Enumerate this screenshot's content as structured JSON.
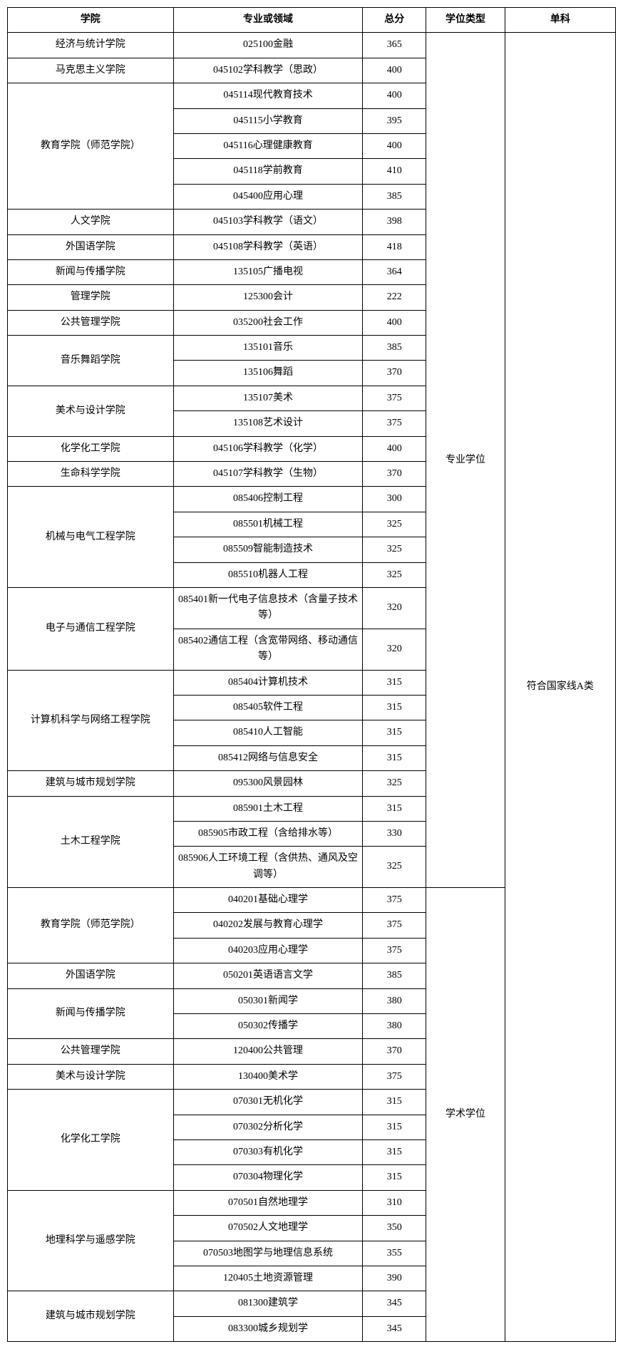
{
  "headers": {
    "college": "学院",
    "major": "专业或领域",
    "score": "总分",
    "type": "学位类型",
    "single": "单科"
  },
  "type_labels": {
    "pro": "专业学位",
    "acad": "学术学位"
  },
  "single_label": "符合国家线A类",
  "rows": [
    {
      "college": "经济与统计学院",
      "college_rowspan": 1,
      "major": "025100金融",
      "score": "365"
    },
    {
      "college": "马克思主义学院",
      "college_rowspan": 1,
      "major": "045102学科教学（思政）",
      "score": "400"
    },
    {
      "college": "教育学院（师范学院）",
      "college_rowspan": 5,
      "major": "045114现代教育技术",
      "score": "400"
    },
    {
      "major": "045115小学教育",
      "score": "395"
    },
    {
      "major": "045116心理健康教育",
      "score": "400"
    },
    {
      "major": "045118学前教育",
      "score": "410"
    },
    {
      "major": "045400应用心理",
      "score": "385"
    },
    {
      "college": "人文学院",
      "college_rowspan": 1,
      "major": "045103学科教学（语文）",
      "score": "398"
    },
    {
      "college": "外国语学院",
      "college_rowspan": 1,
      "major": "045108学科教学（英语）",
      "score": "418"
    },
    {
      "college": "新闻与传播学院",
      "college_rowspan": 1,
      "major": "135105广播电视",
      "score": "364"
    },
    {
      "college": "管理学院",
      "college_rowspan": 1,
      "major": "125300会计",
      "score": "222"
    },
    {
      "college": "公共管理学院",
      "college_rowspan": 1,
      "major": "035200社会工作",
      "score": "400"
    },
    {
      "college": "音乐舞蹈学院",
      "college_rowspan": 2,
      "major": "135101音乐",
      "score": "385"
    },
    {
      "major": "135106舞蹈",
      "score": "370"
    },
    {
      "college": "美术与设计学院",
      "college_rowspan": 2,
      "major": "135107美术",
      "score": "375"
    },
    {
      "major": "135108艺术设计",
      "score": "375"
    },
    {
      "college": "化学化工学院",
      "college_rowspan": 1,
      "major": "045106学科教学（化学）",
      "score": "400"
    },
    {
      "college": "生命科学学院",
      "college_rowspan": 1,
      "major": "045107学科教学（生物）",
      "score": "370"
    },
    {
      "college": "机械与电气工程学院",
      "college_rowspan": 4,
      "major": "085406控制工程",
      "score": "300"
    },
    {
      "major": "085501机械工程",
      "score": "325"
    },
    {
      "major": "085509智能制造技术",
      "score": "325"
    },
    {
      "major": "085510机器人工程",
      "score": "325"
    },
    {
      "college": "电子与通信工程学院",
      "college_rowspan": 2,
      "major": "085401新一代电子信息技术（含量子技术等）",
      "score": "320"
    },
    {
      "major": "085402通信工程（含宽带网络、移动通信等）",
      "score": "320"
    },
    {
      "college": "计算机科学与网络工程学院",
      "college_rowspan": 4,
      "major": "085404计算机技术",
      "score": "315"
    },
    {
      "major": "085405软件工程",
      "score": "315"
    },
    {
      "major": "085410人工智能",
      "score": "315"
    },
    {
      "major": "085412网络与信息安全",
      "score": "315"
    },
    {
      "college": "建筑与城市规划学院",
      "college_rowspan": 1,
      "major": "095300风景园林",
      "score": "325"
    },
    {
      "college": "土木工程学院",
      "college_rowspan": 3,
      "major": "085901土木工程",
      "score": "315"
    },
    {
      "major": "085905市政工程（含给排水等）",
      "score": "330"
    },
    {
      "major": "085906人工环境工程（含供热、通风及空调等）",
      "score": "325"
    },
    {
      "college": "教育学院（师范学院）",
      "college_rowspan": 3,
      "major": "040201基础心理学",
      "score": "375"
    },
    {
      "major": "040202发展与教育心理学",
      "score": "375"
    },
    {
      "major": "040203应用心理学",
      "score": "375"
    },
    {
      "college": "外国语学院",
      "college_rowspan": 1,
      "major": "050201英语语言文学",
      "score": "385"
    },
    {
      "college": "新闻与传播学院",
      "college_rowspan": 2,
      "major": "050301新闻学",
      "score": "380"
    },
    {
      "major": "050302传播学",
      "score": "380"
    },
    {
      "college": "公共管理学院",
      "college_rowspan": 1,
      "major": "120400公共管理",
      "score": "370"
    },
    {
      "college": "美术与设计学院",
      "college_rowspan": 1,
      "major": "130400美术学",
      "score": "375"
    },
    {
      "college": "化学化工学院",
      "college_rowspan": 4,
      "major": "070301无机化学",
      "score": "315"
    },
    {
      "major": "070302分析化学",
      "score": "315"
    },
    {
      "major": "070303有机化学",
      "score": "315"
    },
    {
      "major": "070304物理化学",
      "score": "315"
    },
    {
      "college": "地理科学与遥感学院",
      "college_rowspan": 4,
      "major": "070501自然地理学",
      "score": "310"
    },
    {
      "major": "070502人文地理学",
      "score": "350"
    },
    {
      "major": "070503地图学与地理信息系统",
      "score": "355"
    },
    {
      "major": "120405土地资源管理",
      "score": "390"
    },
    {
      "college": "建筑与城市规划学院",
      "college_rowspan": 2,
      "major": "081300建筑学",
      "score": "345"
    },
    {
      "major": "083300城乡规划学",
      "score": "345"
    }
  ],
  "type_split": {
    "pro_rows": 32,
    "acad_rows": 18
  },
  "total_rows": 50
}
